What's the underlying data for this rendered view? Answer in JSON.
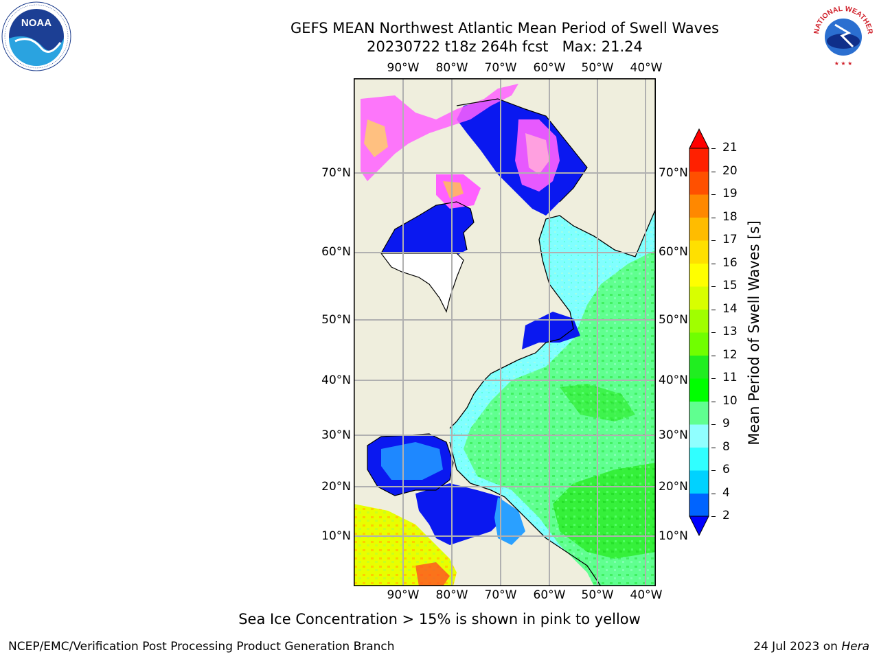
{
  "title": {
    "line1": "GEFS MEAN Northwest Atlantic Mean Period of Swell Waves",
    "line2": "20230722 t18z 264h fcst   Max: 21.24"
  },
  "logos": {
    "noara_text": "NOAA",
    "nws_text": "NATIONAL WEATHER SERVICE"
  },
  "map": {
    "lon_labels": [
      "90°W",
      "80°W",
      "70°W",
      "60°W",
      "50°W",
      "40°W"
    ],
    "lat_labels": [
      "70°N",
      "60°N",
      "50°N",
      "40°N",
      "30°N",
      "20°N",
      "10°N"
    ],
    "colors": {
      "land": "#efeedd",
      "ocean_cyan": "#80ffff",
      "ocean_green": "#60ff90",
      "ice_pink": "#ff60ff",
      "deep_blue": "#0a18f0"
    }
  },
  "colorbar": {
    "label": "Mean Period of Swell Waves [s]",
    "ticks": [
      "2",
      "4",
      "6",
      "8",
      "9",
      "10",
      "11",
      "12",
      "13",
      "14",
      "15",
      "16",
      "17",
      "18",
      "19",
      "20",
      "21"
    ],
    "colors": [
      "#0064ff",
      "#00d2ff",
      "#30ffff",
      "#90ffff",
      "#60ff90",
      "#00ff00",
      "#20ee20",
      "#70ff00",
      "#a0ff00",
      "#d8ff00",
      "#ffff00",
      "#ffe000",
      "#ffbc00",
      "#ff8800",
      "#ff5000",
      "#ff2000"
    ],
    "under_color": "#0000ff",
    "over_color": "#ff0000"
  },
  "note": "Sea Ice Concentration > 15% is shown in pink to yellow",
  "footer": {
    "left": "NCEP/EMC/Verification Post Processing Product Generation Branch",
    "right_date": "24 Jul 2023 on ",
    "right_host": "Hera"
  }
}
